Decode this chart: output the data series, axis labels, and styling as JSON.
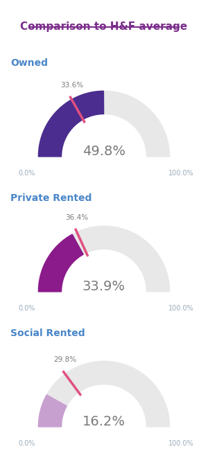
{
  "title": "Comparison to H&F average",
  "title_color": "#7B2D8B",
  "background_color": "#ffffff",
  "border_color": "#7B2D8B",
  "categories": [
    "Owned",
    "Private Rented",
    "Social Rented"
  ],
  "category_color": "#4a86c8",
  "values": [
    49.8,
    33.9,
    16.2
  ],
  "hf_values": [
    33.6,
    36.4,
    29.8
  ],
  "value_color": "#7a7a7a",
  "arc_colors": [
    "#4B2D8F",
    "#8B1A8B",
    "#C8A0D0"
  ],
  "hf_line_color": "#e05080",
  "bg_arc_color": "#e8e8e8",
  "axis_label_color": "#9aacbc",
  "figsize": [
    3.0,
    6.84
  ],
  "dpi": 100
}
